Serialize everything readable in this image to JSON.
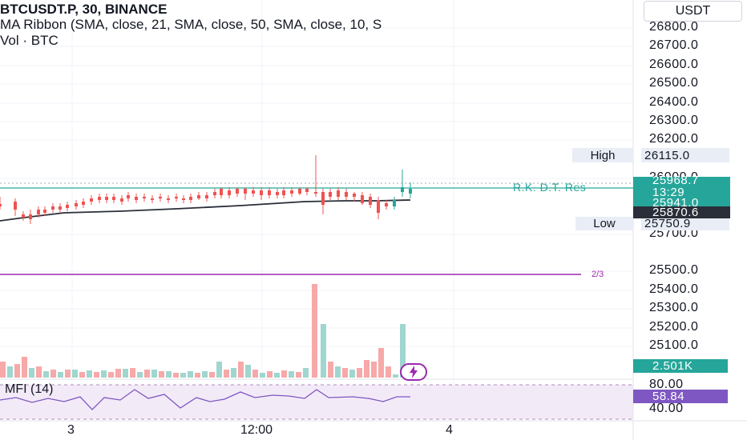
{
  "legend": {
    "symbol_line": "BTCUSDT.P, 30, BINANCE",
    "ma_ribbon": "MA Ribbon (SMA, close, 21, SMA, close, 50, SMA, close, 10, S",
    "volume": "Vol · BTC"
  },
  "currency_button": "USDT",
  "price_axis": [
    "26800.0",
    "26700.0",
    "26600.0",
    "26500.0",
    "26400.0",
    "26300.0",
    "26200.0",
    "26000.0",
    "25700.0",
    "25500.0",
    "25400.0",
    "25300.0",
    "25200.0",
    "25100.0"
  ],
  "price_tags": {
    "high_label": "High",
    "high_value": "26115.0",
    "current_price": "25968.7",
    "countdown": "13:29",
    "ma_value": "25941.0",
    "ma_value2": "25870.6",
    "low_label": "Low",
    "low_value": "25750.9",
    "volume_value": "2.501K"
  },
  "indicator_labels": {
    "resistance": "R.K. D.T. Res",
    "fraction": "2/3",
    "mfi_title": "MFI (14)",
    "mfi_value": "58.84",
    "mfi_upper": "80.00",
    "mfi_lower": "40.00"
  },
  "time_axis": [
    "3",
    "12:00",
    "4"
  ],
  "colors": {
    "up": "#26a69a",
    "down": "#ef5350",
    "volume_up": "#9fd6cf",
    "volume_down": "#f7a8a8",
    "ma_line": "#2a2e39",
    "purple": "#9c27b0",
    "mfi_band": "#f3eaf7",
    "teal_line": "#26a69a"
  },
  "icons": {
    "flash": "lightning-bolt-icon"
  }
}
